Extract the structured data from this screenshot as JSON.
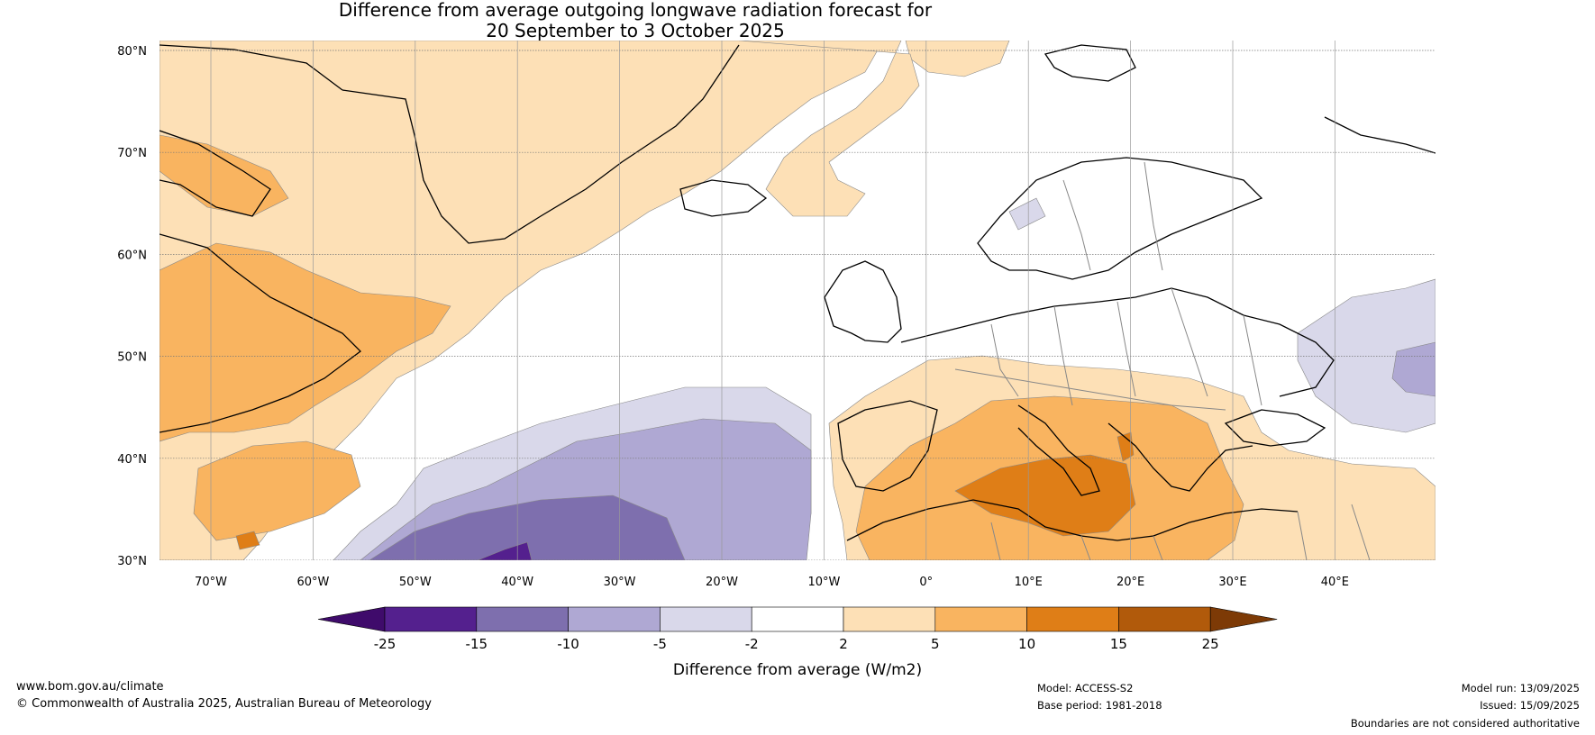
{
  "title_line1": "Difference from average outgoing longwave radiation forecast for",
  "title_line2": "20 September to 3 October 2025",
  "lat_labels": [
    "80°N",
    "70°N",
    "60°N",
    "50°N",
    "40°N",
    "30°N"
  ],
  "lon_labels": [
    "70°W",
    "60°W",
    "50°W",
    "40°W",
    "30°W",
    "20°W",
    "10°W",
    "0°",
    "10°E",
    "20°E",
    "30°E",
    "40°E"
  ],
  "colorbar": {
    "ticks": [
      "-25",
      "-15",
      "-10",
      "-5",
      "-2",
      "2",
      "5",
      "10",
      "15",
      "25"
    ],
    "colors": [
      "#3f0b6b",
      "#54208e",
      "#7e6fae",
      "#afa8d3",
      "#d9d8ea",
      "#ffffff",
      "#fde0b6",
      "#f9b460",
      "#df7e17",
      "#b15a0b",
      "#7d3a06"
    ],
    "label": "Difference from average (W/m2)"
  },
  "footer": {
    "website": "www.bom.gov.au/climate",
    "copyright": "© Commonwealth of Australia 2025, Australian Bureau of Meteorology",
    "model": "Model: ACCESS-S2",
    "base_period": "Base period: 1981-2018",
    "model_run": "Model run: 13/09/2025",
    "issued": "Issued: 15/09/2025",
    "disclaimer": "Boundaries are not considered authoritative"
  }
}
